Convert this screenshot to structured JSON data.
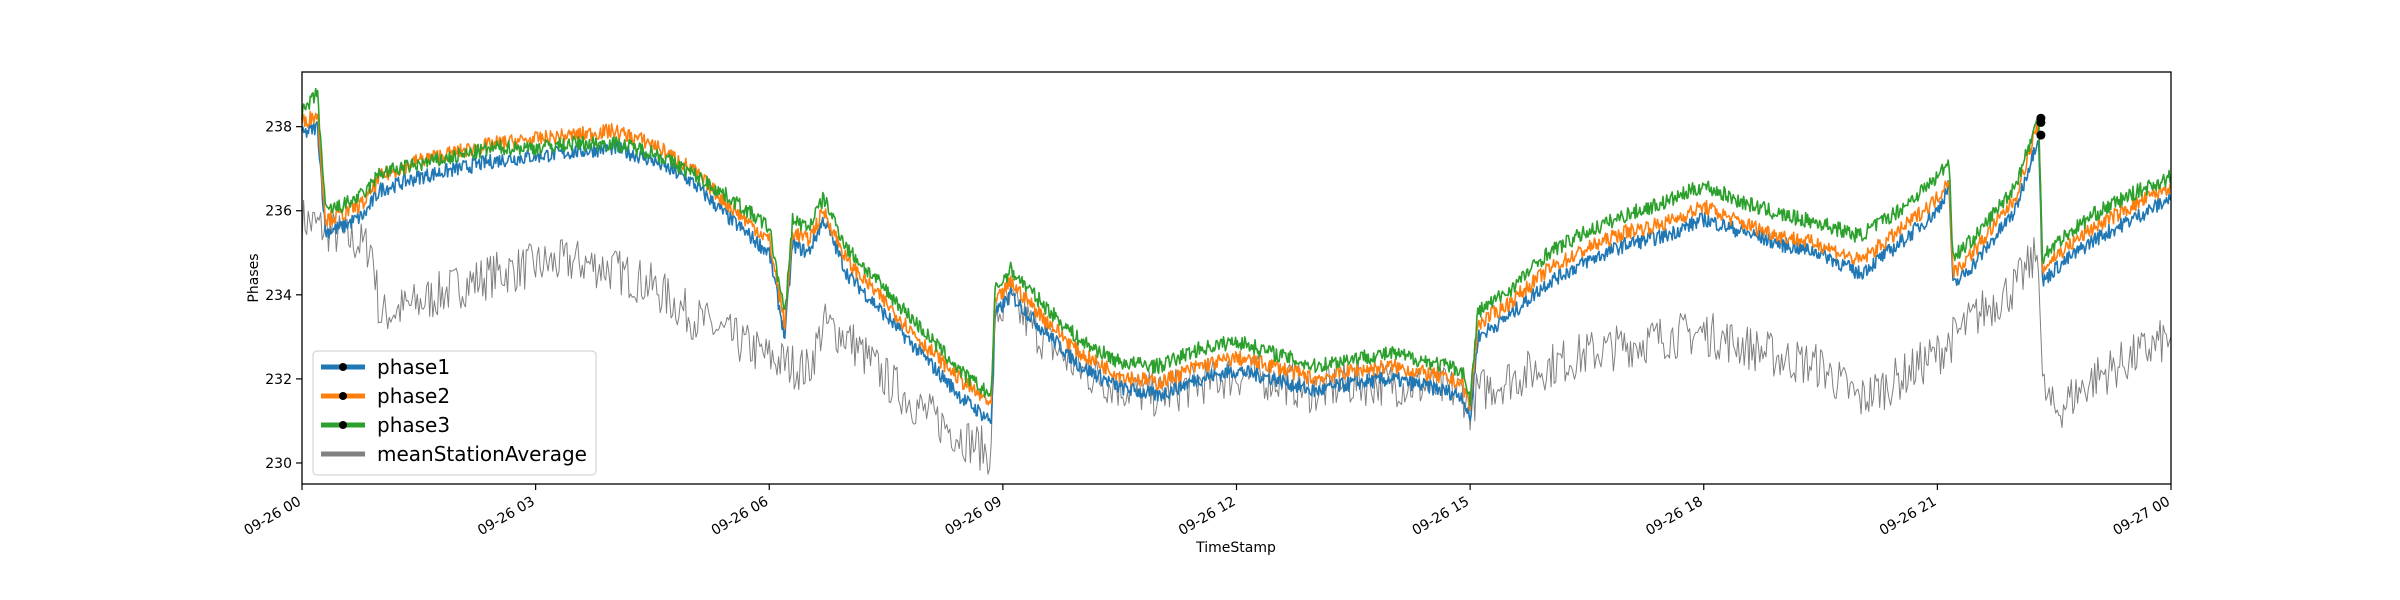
{
  "chart_data": {
    "type": "line",
    "title": "",
    "xlabel": "TimeStamp",
    "ylabel": "Phases",
    "xlim": [
      "09-26 00",
      "09-27 00"
    ],
    "ylim": [
      229.5,
      239.3
    ],
    "x_ticks": [
      "09-26 00",
      "09-26 03",
      "09-26 06",
      "09-26 09",
      "09-26 12",
      "09-26 15",
      "09-26 18",
      "09-26 21",
      "09-27 00"
    ],
    "y_ticks": [
      230,
      232,
      234,
      236,
      238
    ],
    "grid": false,
    "legend": {
      "position": "lower-left"
    },
    "series": [
      {
        "name": "phase1",
        "color": "#1f77b4",
        "x_hours": [
          0,
          0.2,
          0.3,
          0.5,
          0.8,
          1.0,
          1.5,
          2.0,
          2.5,
          3.0,
          3.5,
          4.0,
          4.5,
          5.0,
          5.5,
          6.0,
          6.2,
          6.3,
          6.5,
          6.7,
          7.0,
          7.5,
          8.0,
          8.5,
          8.85,
          8.9,
          9.1,
          9.5,
          10.0,
          10.5,
          11.0,
          11.5,
          12.0,
          12.5,
          13.0,
          13.5,
          14.0,
          14.5,
          14.9,
          15.0,
          15.1,
          15.5,
          16.0,
          16.5,
          17.0,
          17.5,
          18.0,
          18.5,
          19.0,
          19.5,
          20.0,
          20.5,
          21.0,
          21.15,
          21.2,
          21.5,
          22.0,
          22.3,
          22.35,
          22.5,
          23.0,
          23.5,
          24.0
        ],
        "values": [
          237.8,
          238.0,
          235.5,
          235.6,
          235.9,
          236.5,
          236.8,
          237.0,
          237.2,
          237.3,
          237.4,
          237.5,
          237.2,
          236.7,
          235.8,
          235.0,
          233.0,
          235.2,
          235.0,
          235.8,
          234.5,
          233.5,
          232.5,
          231.5,
          231.0,
          233.5,
          234.0,
          233.2,
          232.3,
          231.8,
          231.6,
          232.0,
          232.2,
          232.0,
          231.7,
          231.9,
          232.0,
          231.8,
          231.6,
          231.0,
          233.0,
          233.5,
          234.3,
          234.8,
          235.2,
          235.4,
          235.8,
          235.5,
          235.2,
          235.0,
          234.5,
          235.2,
          236.0,
          236.6,
          234.2,
          234.8,
          236.0,
          237.8,
          234.3,
          234.6,
          235.3,
          235.8,
          236.3
        ]
      },
      {
        "name": "phase2",
        "color": "#ff7f0e",
        "x_hours": [
          0,
          0.2,
          0.3,
          0.5,
          0.8,
          1.0,
          1.5,
          2.0,
          2.5,
          3.0,
          3.5,
          4.0,
          4.5,
          5.0,
          5.5,
          6.0,
          6.2,
          6.3,
          6.5,
          6.7,
          7.0,
          7.5,
          8.0,
          8.5,
          8.85,
          8.9,
          9.1,
          9.5,
          10.0,
          10.5,
          11.0,
          11.5,
          12.0,
          12.5,
          13.0,
          13.5,
          14.0,
          14.5,
          14.9,
          15.0,
          15.1,
          15.5,
          16.0,
          16.5,
          17.0,
          17.5,
          18.0,
          18.5,
          19.0,
          19.5,
          20.0,
          20.5,
          21.0,
          21.15,
          21.2,
          21.5,
          22.0,
          22.3,
          22.35,
          22.5,
          23.0,
          23.5,
          24.0
        ],
        "values": [
          238.1,
          238.3,
          235.8,
          235.9,
          236.2,
          236.8,
          237.2,
          237.4,
          237.6,
          237.7,
          237.8,
          237.9,
          237.6,
          237.0,
          236.1,
          235.3,
          233.3,
          235.5,
          235.3,
          236.0,
          234.8,
          233.8,
          232.8,
          231.9,
          231.4,
          233.8,
          234.3,
          233.5,
          232.6,
          232.1,
          231.9,
          232.3,
          232.5,
          232.3,
          232.0,
          232.2,
          232.3,
          232.1,
          231.9,
          231.3,
          233.3,
          233.8,
          234.6,
          235.1,
          235.5,
          235.7,
          236.1,
          235.7,
          235.4,
          235.2,
          234.8,
          235.5,
          236.3,
          236.8,
          234.5,
          235.1,
          236.3,
          238.1,
          234.6,
          234.9,
          235.6,
          236.1,
          236.6
        ]
      },
      {
        "name": "phase3",
        "color": "#2ca02c",
        "x_hours": [
          0,
          0.2,
          0.3,
          0.5,
          0.8,
          1.0,
          1.5,
          2.0,
          2.5,
          3.0,
          3.5,
          4.0,
          4.5,
          5.0,
          5.5,
          6.0,
          6.2,
          6.3,
          6.5,
          6.7,
          7.0,
          7.5,
          8.0,
          8.5,
          8.85,
          8.9,
          9.1,
          9.5,
          10.0,
          10.5,
          11.0,
          11.5,
          12.0,
          12.5,
          13.0,
          13.5,
          14.0,
          14.5,
          14.9,
          15.0,
          15.1,
          15.5,
          16.0,
          16.5,
          17.0,
          17.5,
          18.0,
          18.5,
          19.0,
          19.5,
          20.0,
          20.5,
          21.0,
          21.15,
          21.2,
          21.5,
          22.0,
          22.3,
          22.35,
          22.5,
          23.0,
          23.5,
          24.0
        ],
        "values": [
          238.3,
          238.8,
          236.0,
          236.1,
          236.4,
          236.9,
          237.1,
          237.3,
          237.5,
          237.5,
          237.6,
          237.6,
          237.4,
          236.9,
          236.3,
          235.6,
          233.5,
          235.8,
          235.6,
          236.3,
          235.1,
          234.1,
          233.1,
          232.1,
          231.6,
          234.1,
          234.6,
          233.8,
          232.9,
          232.4,
          232.3,
          232.7,
          232.9,
          232.6,
          232.3,
          232.5,
          232.6,
          232.4,
          232.2,
          231.5,
          233.6,
          234.1,
          235.0,
          235.5,
          235.9,
          236.2,
          236.6,
          236.2,
          235.9,
          235.7,
          235.4,
          236.0,
          236.8,
          237.2,
          234.9,
          235.4,
          236.6,
          238.2,
          234.9,
          235.2,
          235.9,
          236.4,
          236.8
        ]
      },
      {
        "name": "meanStationAverage",
        "color": "#808080",
        "x_hours": [
          0,
          0.5,
          0.9,
          1.0,
          1.5,
          2.0,
          2.5,
          3.0,
          3.5,
          4.0,
          4.5,
          5.0,
          5.5,
          6.0,
          6.5,
          6.7,
          7.0,
          7.5,
          8.0,
          8.5,
          8.85,
          8.9,
          9.1,
          9.5,
          10.0,
          10.5,
          11.0,
          11.5,
          12.0,
          12.5,
          13.0,
          13.5,
          14.0,
          14.5,
          14.9,
          15.0,
          15.1,
          15.5,
          16.0,
          16.5,
          17.0,
          17.5,
          18.0,
          18.5,
          19.0,
          19.5,
          20.0,
          20.5,
          21.0,
          21.5,
          22.0,
          22.3,
          22.35,
          22.5,
          23.0,
          23.5,
          24.0
        ],
        "values": [
          235.8,
          235.4,
          235.1,
          233.5,
          233.8,
          234.2,
          234.5,
          234.7,
          234.8,
          234.6,
          234.2,
          233.5,
          233.0,
          232.5,
          232.2,
          233.3,
          233.0,
          232.0,
          231.2,
          230.6,
          230.2,
          233.5,
          233.8,
          233.0,
          232.2,
          231.8,
          231.6,
          231.9,
          232.1,
          232.0,
          231.7,
          231.9,
          231.9,
          231.8,
          231.7,
          231.3,
          231.7,
          232.0,
          232.3,
          232.6,
          232.8,
          233.0,
          233.1,
          232.8,
          232.5,
          232.3,
          231.5,
          232.0,
          232.6,
          233.5,
          234.2,
          235.0,
          231.8,
          231.2,
          232.0,
          232.5,
          233.0
        ]
      }
    ]
  }
}
